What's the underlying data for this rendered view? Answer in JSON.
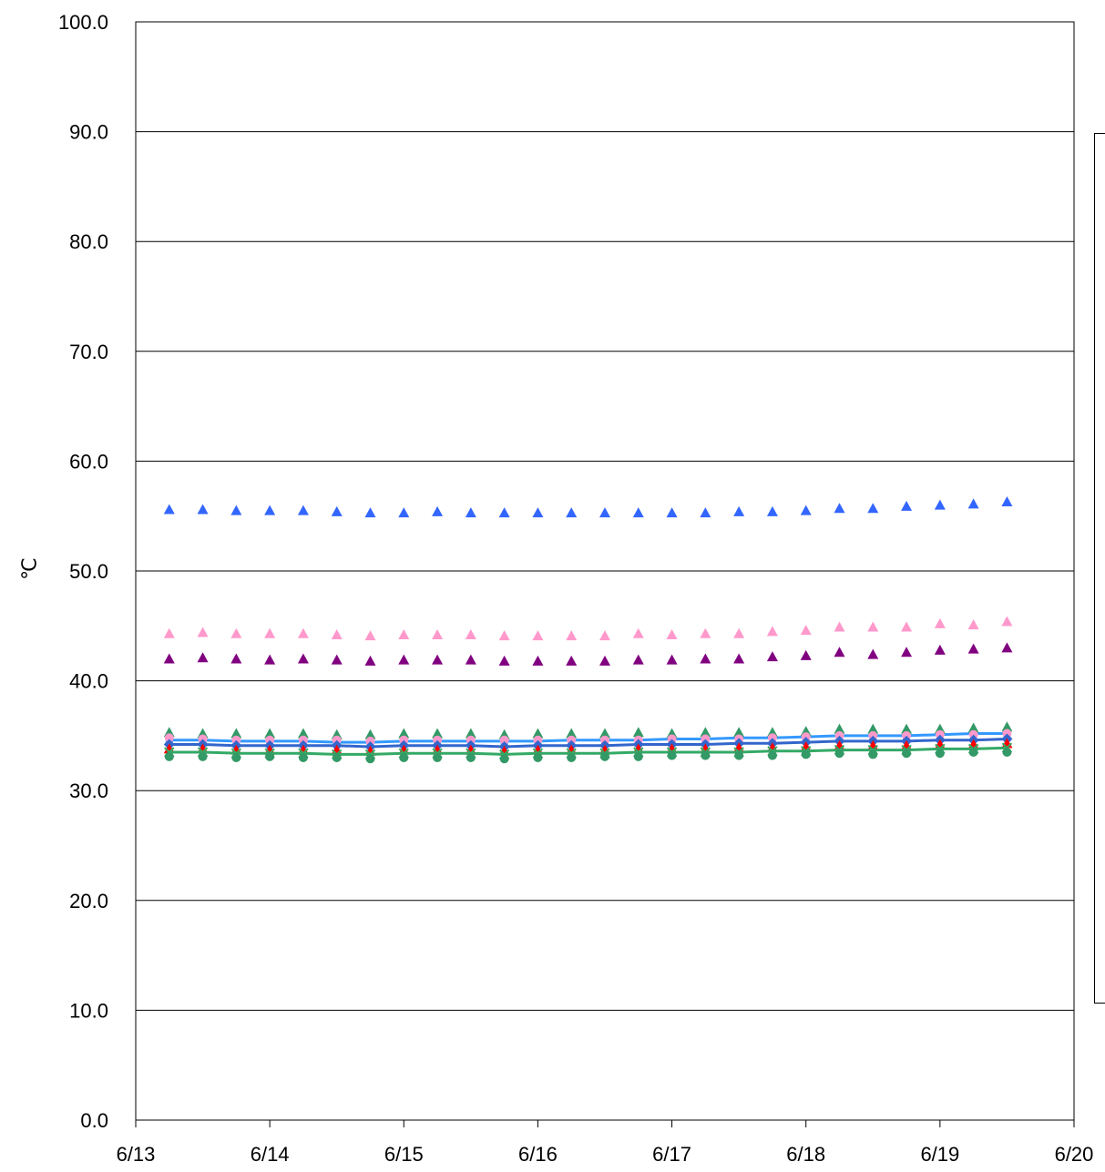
{
  "chart_data": {
    "type": "scatter",
    "ylabel": "℃",
    "xlabel": "",
    "ylim": [
      0,
      100
    ],
    "y_ticks": [
      "0.0",
      "10.0",
      "20.0",
      "30.0",
      "40.0",
      "50.0",
      "60.0",
      "70.0",
      "80.0",
      "90.0",
      "100.0"
    ],
    "x_ticks": [
      "6/13",
      "6/14",
      "6/15",
      "6/16",
      "6/17",
      "6/18",
      "6/19",
      "6/20"
    ],
    "grid": "horizontal",
    "legend": "right (entries not visible)",
    "x_dates": [
      "6/13 06:00",
      "6/13 12:00",
      "6/13 18:00",
      "6/14 00:00",
      "6/14 06:00",
      "6/14 12:00",
      "6/14 18:00",
      "6/15 00:00",
      "6/15 06:00",
      "6/15 12:00",
      "6/15 18:00",
      "6/16 00:00",
      "6/16 06:00",
      "6/16 12:00",
      "6/16 18:00",
      "6/17 00:00",
      "6/17 06:00",
      "6/17 12:00",
      "6/17 18:00",
      "6/18 00:00",
      "6/18 06:00",
      "6/18 12:00",
      "6/18 18:00",
      "6/19 00:00",
      "6/19 06:00",
      "6/19 12:00"
    ],
    "x_days": [
      0.25,
      0.5,
      0.75,
      1.0,
      1.25,
      1.5,
      1.75,
      2.0,
      2.25,
      2.5,
      2.75,
      3.0,
      3.25,
      3.5,
      3.75,
      4.0,
      4.25,
      4.5,
      4.75,
      5.0,
      5.25,
      5.5,
      5.75,
      6.0,
      6.25,
      6.5
    ],
    "series": [
      {
        "color": "#3366ff",
        "marker": "triangle",
        "values": [
          55.6,
          55.6,
          55.5,
          55.5,
          55.5,
          55.4,
          55.3,
          55.3,
          55.4,
          55.3,
          55.3,
          55.3,
          55.3,
          55.3,
          55.3,
          55.3,
          55.3,
          55.4,
          55.4,
          55.5,
          55.7,
          55.7,
          55.9,
          56.0,
          56.1,
          56.3
        ]
      },
      {
        "color": "#ff99cc",
        "marker": "triangle",
        "values": [
          44.3,
          44.4,
          44.3,
          44.3,
          44.3,
          44.2,
          44.1,
          44.2,
          44.2,
          44.2,
          44.1,
          44.1,
          44.1,
          44.1,
          44.3,
          44.2,
          44.3,
          44.3,
          44.5,
          44.6,
          44.9,
          44.9,
          44.9,
          45.2,
          45.1,
          45.4
        ]
      },
      {
        "color": "#800080",
        "marker": "triangle",
        "values": [
          42.0,
          42.1,
          42.0,
          41.9,
          42.0,
          41.9,
          41.8,
          41.9,
          41.9,
          41.9,
          41.8,
          41.8,
          41.8,
          41.8,
          41.9,
          41.9,
          42.0,
          42.0,
          42.2,
          42.3,
          42.6,
          42.4,
          42.6,
          42.8,
          42.9,
          43.0
        ]
      },
      {
        "color": "#3399ff",
        "marker": "square-line",
        "values": [
          34.6,
          34.6,
          34.5,
          34.5,
          34.5,
          34.4,
          34.4,
          34.5,
          34.5,
          34.5,
          34.5,
          34.5,
          34.6,
          34.6,
          34.6,
          34.7,
          34.7,
          34.8,
          34.8,
          34.9,
          35.0,
          35.0,
          35.0,
          35.1,
          35.2,
          35.2
        ]
      },
      {
        "color": "#339966",
        "marker": "triangle",
        "values": [
          35.3,
          35.2,
          35.2,
          35.2,
          35.2,
          35.1,
          35.1,
          35.2,
          35.2,
          35.2,
          35.1,
          35.2,
          35.2,
          35.2,
          35.3,
          35.2,
          35.3,
          35.3,
          35.3,
          35.4,
          35.6,
          35.6,
          35.6,
          35.6,
          35.7,
          35.8
        ]
      },
      {
        "color": "#ff99cc",
        "marker": "circle",
        "values": [
          34.8,
          34.7,
          34.6,
          34.6,
          34.6,
          34.6,
          34.5,
          34.6,
          34.6,
          34.6,
          34.6,
          34.6,
          34.6,
          34.6,
          34.6,
          34.7,
          34.7,
          34.7,
          34.8,
          34.9,
          35.0,
          35.0,
          35.0,
          35.1,
          35.1,
          35.2
        ]
      },
      {
        "color": "#3366cc",
        "marker": "diamond-line",
        "values": [
          34.2,
          34.2,
          34.1,
          34.1,
          34.1,
          34.1,
          34.0,
          34.1,
          34.1,
          34.1,
          34.0,
          34.1,
          34.1,
          34.1,
          34.2,
          34.2,
          34.2,
          34.3,
          34.3,
          34.4,
          34.5,
          34.5,
          34.5,
          34.6,
          34.6,
          34.7
        ]
      },
      {
        "color": "#ff0000",
        "marker": "triangle",
        "values": [
          33.8,
          33.8,
          33.7,
          33.7,
          33.7,
          33.7,
          33.6,
          33.7,
          33.7,
          33.7,
          33.6,
          33.7,
          33.7,
          33.7,
          33.8,
          33.8,
          33.8,
          33.9,
          33.9,
          34.0,
          34.1,
          34.1,
          34.1,
          34.2,
          34.2,
          34.3
        ]
      },
      {
        "color": "#33aa66",
        "marker": "x-line",
        "values": [
          33.5,
          33.5,
          33.4,
          33.4,
          33.4,
          33.3,
          33.3,
          33.4,
          33.4,
          33.4,
          33.3,
          33.4,
          33.4,
          33.4,
          33.5,
          33.5,
          33.5,
          33.5,
          33.6,
          33.6,
          33.7,
          33.7,
          33.7,
          33.8,
          33.8,
          33.9
        ]
      },
      {
        "color": "#339966",
        "marker": "circle",
        "values": [
          33.1,
          33.1,
          33.0,
          33.1,
          33.0,
          33.0,
          32.9,
          33.0,
          33.0,
          33.0,
          32.9,
          33.0,
          33.0,
          33.1,
          33.1,
          33.2,
          33.2,
          33.2,
          33.2,
          33.3,
          33.4,
          33.3,
          33.4,
          33.4,
          33.5,
          33.5
        ]
      }
    ]
  }
}
